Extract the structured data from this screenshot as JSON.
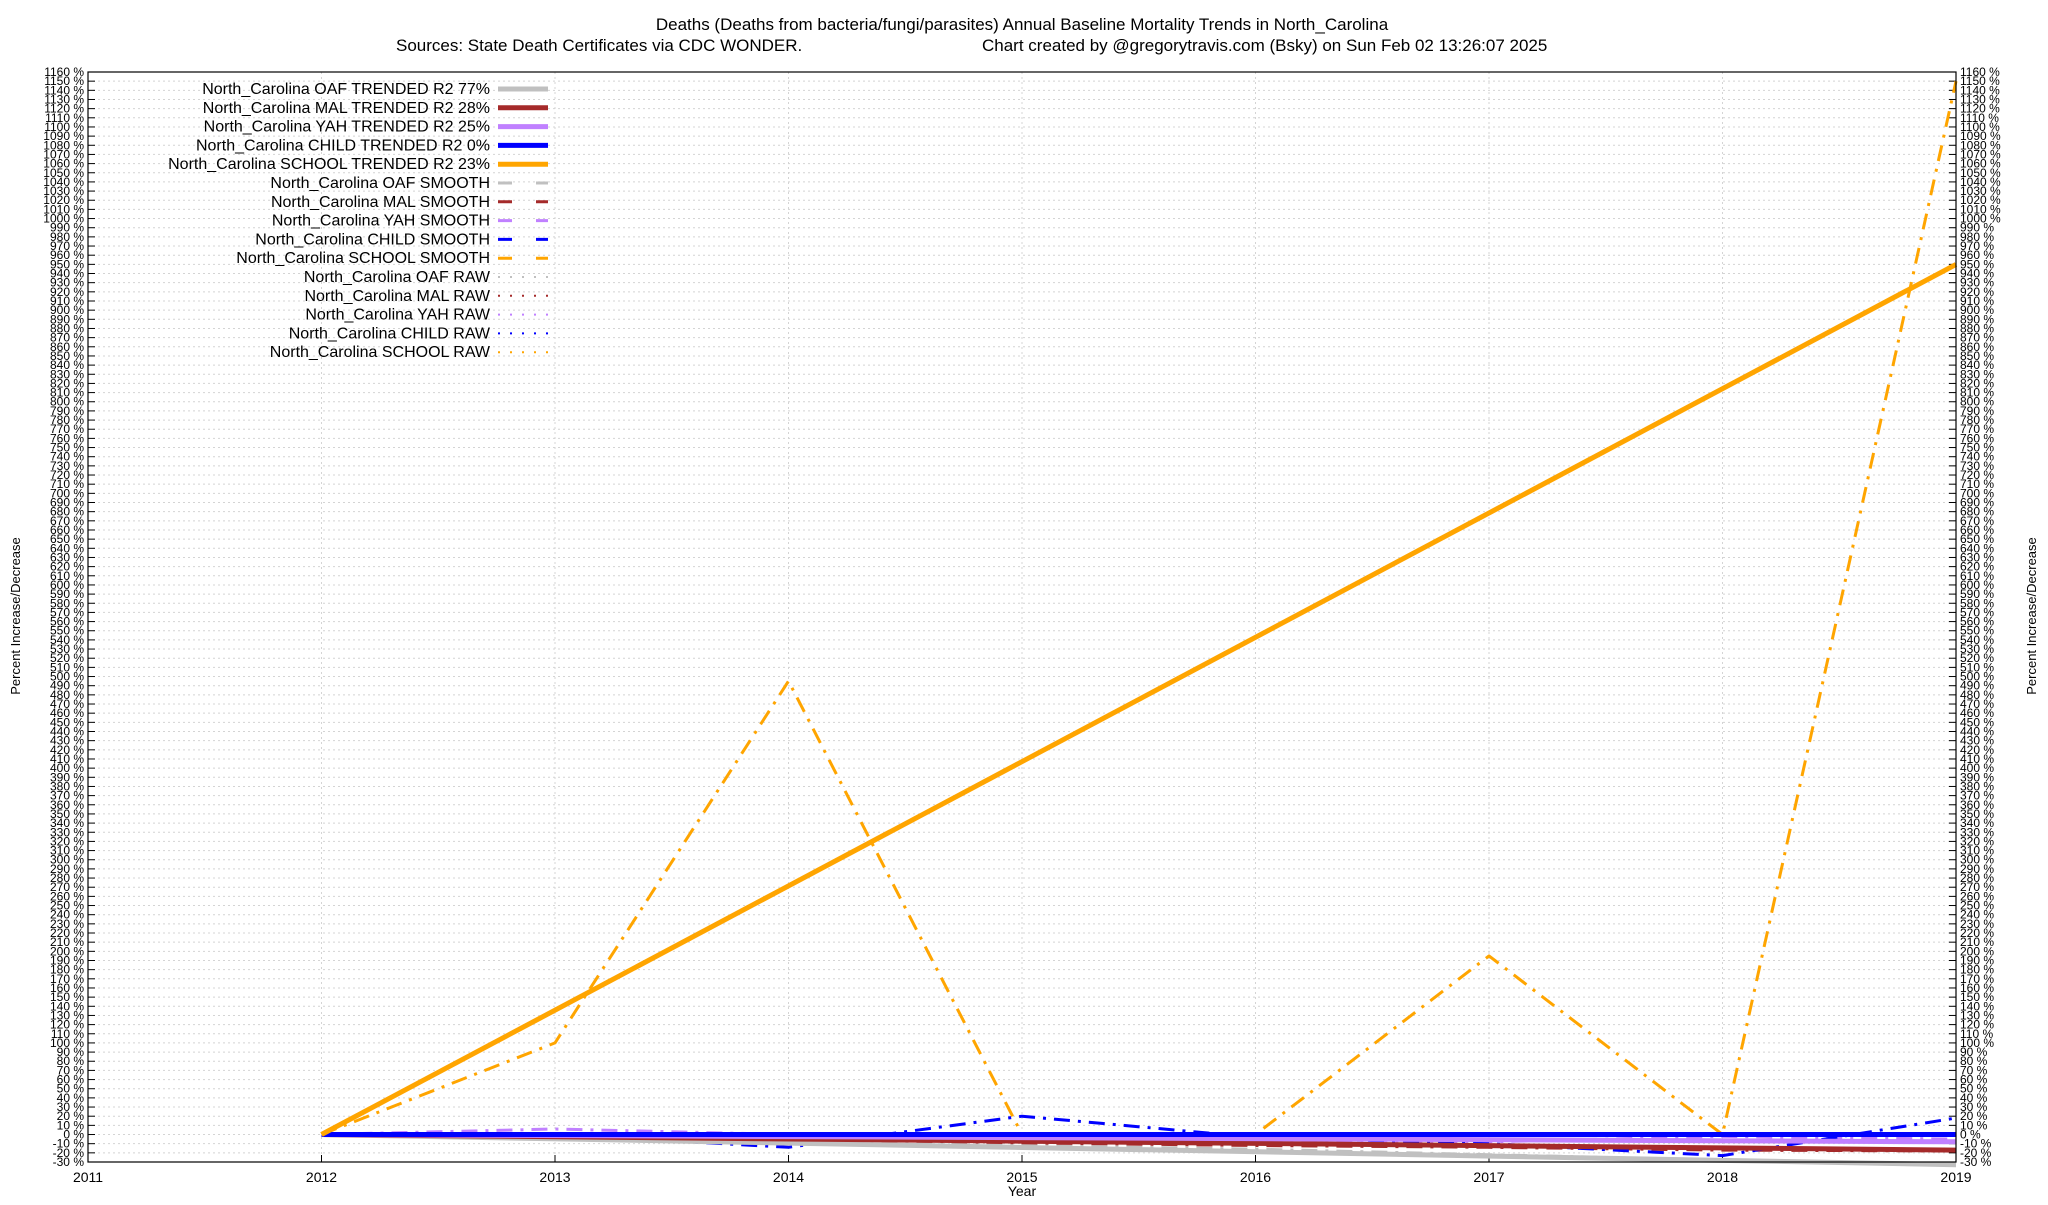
{
  "chart_data": {
    "type": "line",
    "title": "Deaths (Deaths from bacteria/fungi/parasites)  Annual Baseline Mortality Trends in North_Carolina",
    "subtitle_left": "Sources: State Death Certificates via CDC WONDER.",
    "subtitle_right": "Chart created by @gregorytravis.com (Bsky) on Sun Feb 02 13:26:07 2025",
    "xlabel": "Year",
    "ylabel": "Percent Increase/Decrease",
    "ylabel_right": "Percent Increase/Decrease",
    "xlim": [
      2011,
      2019
    ],
    "ylim": [
      -30,
      1160
    ],
    "x_ticks": [
      "2011",
      "2012",
      "2013",
      "2014",
      "2015",
      "2016",
      "2017",
      "2018",
      "2019"
    ],
    "y_tick_step": 10,
    "y_tick_suffix": " %",
    "grid": true,
    "legend_position": "top-left",
    "series": [
      {
        "name": "North_Carolina OAF TRENDED R2  77%",
        "style": "trend",
        "color": "#c0c0c0",
        "x": [
          2012,
          2019
        ],
        "values": [
          0,
          -33
        ]
      },
      {
        "name": "North_Carolina MAL TRENDED R2  28%",
        "style": "trend",
        "color": "#a52a2a",
        "x": [
          2012,
          2019
        ],
        "values": [
          0,
          -17
        ]
      },
      {
        "name": "North_Carolina YAH TRENDED R2  25%",
        "style": "trend",
        "color": "#c080ff",
        "x": [
          2012,
          2019
        ],
        "values": [
          0,
          -8
        ]
      },
      {
        "name": "North_Carolina CHILD TRENDED R2   0%",
        "style": "trend",
        "color": "#0000ff",
        "x": [
          2012,
          2019
        ],
        "values": [
          0,
          0
        ]
      },
      {
        "name": "North_Carolina SCHOOL TRENDED R2  23%",
        "style": "trend",
        "color": "#ffa500",
        "x": [
          2012,
          2019
        ],
        "values": [
          0,
          950
        ]
      },
      {
        "name": "North_Carolina OAF SMOOTH",
        "style": "smooth",
        "color": "#c0c0c0",
        "x": [
          2012,
          2013,
          2014,
          2015,
          2016,
          2017,
          2018,
          2019
        ],
        "values": [
          0,
          -3,
          -8,
          -12,
          -16,
          -22,
          -28,
          -33
        ]
      },
      {
        "name": "North_Carolina MAL SMOOTH",
        "style": "smooth",
        "color": "#a52a2a",
        "x": [
          2012,
          2013,
          2014,
          2015,
          2016,
          2017,
          2018,
          2019
        ],
        "values": [
          0,
          -2,
          -5,
          -9,
          -12,
          -14,
          -17,
          -18
        ]
      },
      {
        "name": "North_Carolina YAH SMOOTH",
        "style": "smooth",
        "color": "#c080ff",
        "x": [
          2012,
          2013,
          2014,
          2015,
          2016,
          2017,
          2018,
          2019
        ],
        "values": [
          0,
          6,
          0,
          -4,
          -6,
          -8,
          -2,
          -5
        ]
      },
      {
        "name": "North_Carolina CHILD SMOOTH",
        "style": "smooth",
        "color": "#0000ff",
        "x": [
          2012,
          2013,
          2014,
          2015,
          2016,
          2017,
          2018,
          2019
        ],
        "values": [
          0,
          0,
          -14,
          20,
          -3,
          -10,
          -23,
          18
        ]
      },
      {
        "name": "North_Carolina SCHOOL SMOOTH",
        "style": "smooth",
        "color": "#ffa500",
        "x": [
          2012,
          2013,
          2014,
          2015,
          2016,
          2017,
          2018,
          2019
        ],
        "values": [
          0,
          100,
          495,
          0,
          0,
          195,
          0,
          1150
        ]
      },
      {
        "name": "North_Carolina OAF RAW",
        "style": "raw",
        "color": "#c0c0c0",
        "x": [],
        "values": []
      },
      {
        "name": "North_Carolina MAL RAW",
        "style": "raw",
        "color": "#a52a2a",
        "x": [],
        "values": []
      },
      {
        "name": "North_Carolina YAH RAW",
        "style": "raw",
        "color": "#c080ff",
        "x": [],
        "values": []
      },
      {
        "name": "North_Carolina CHILD RAW",
        "style": "raw",
        "color": "#0000ff",
        "x": [],
        "values": []
      },
      {
        "name": "North_Carolina SCHOOL RAW",
        "style": "raw",
        "color": "#ffa500",
        "x": [],
        "values": []
      }
    ]
  }
}
